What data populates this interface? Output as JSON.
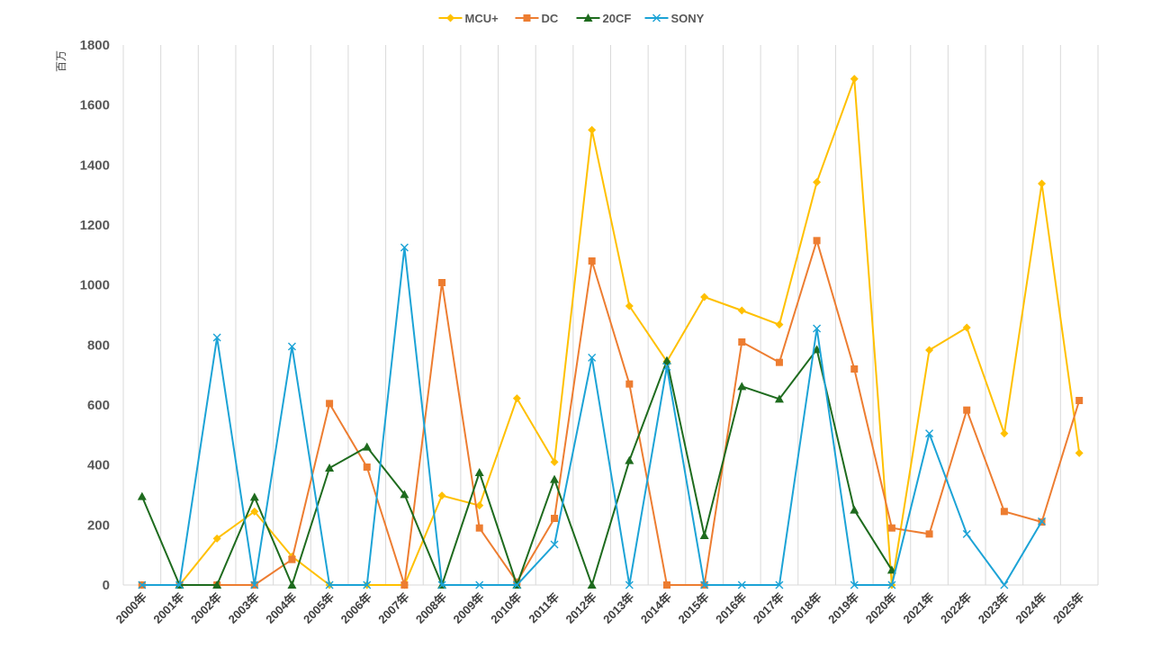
{
  "chart_data": {
    "type": "line",
    "title": "",
    "ylabel": "百万",
    "xlabel": "",
    "ylim": [
      0,
      1800
    ],
    "y_ticks": [
      "0",
      "200",
      "400",
      "600",
      "800",
      "1000",
      "1200",
      "1400",
      "1600",
      "1800"
    ],
    "grid": "vertical category gridlines",
    "legend_position": "top-center",
    "categories": [
      "2000年",
      "2001年",
      "2002年",
      "2003年",
      "2004年",
      "2005年",
      "2006年",
      "2007年",
      "2008年",
      "2009年",
      "2010年",
      "2011年",
      "2012年",
      "2013年",
      "2014年",
      "2015年",
      "2016年",
      "2017年",
      "2018年",
      "2019年",
      "2020年",
      "2021年",
      "2022年",
      "2023年",
      "2024年",
      "2025年"
    ],
    "series": [
      {
        "name": "MCU+",
        "color": "#FFC000",
        "marker": "diamond",
        "values": [
          0,
          0,
          155,
          245,
          95,
          0,
          0,
          0,
          298,
          265,
          622,
          410,
          1517,
          930,
          745,
          960,
          915,
          868,
          1343,
          1687,
          0,
          783,
          858,
          505,
          1338,
          440
        ]
      },
      {
        "name": "DC",
        "color": "#ED7D31",
        "marker": "square",
        "values": [
          0,
          0,
          0,
          0,
          85,
          605,
          393,
          0,
          1008,
          190,
          10,
          222,
          1080,
          670,
          0,
          0,
          810,
          742,
          1148,
          720,
          190,
          170,
          583,
          245,
          210,
          615
        ]
      },
      {
        "name": "20CF",
        "color": "#1E6B1E",
        "marker": "triangle",
        "values": [
          295,
          0,
          0,
          293,
          0,
          390,
          460,
          302,
          0,
          375,
          0,
          352,
          0,
          415,
          748,
          165,
          662,
          620,
          785,
          250,
          50,
          null,
          null,
          null,
          null,
          null
        ]
      },
      {
        "name": "SONY",
        "color": "#1CA3D6",
        "marker": "x",
        "values": [
          0,
          0,
          825,
          0,
          795,
          0,
          0,
          1125,
          0,
          0,
          0,
          135,
          758,
          0,
          728,
          0,
          0,
          0,
          855,
          0,
          0,
          505,
          170,
          0,
          212,
          null
        ]
      }
    ]
  }
}
